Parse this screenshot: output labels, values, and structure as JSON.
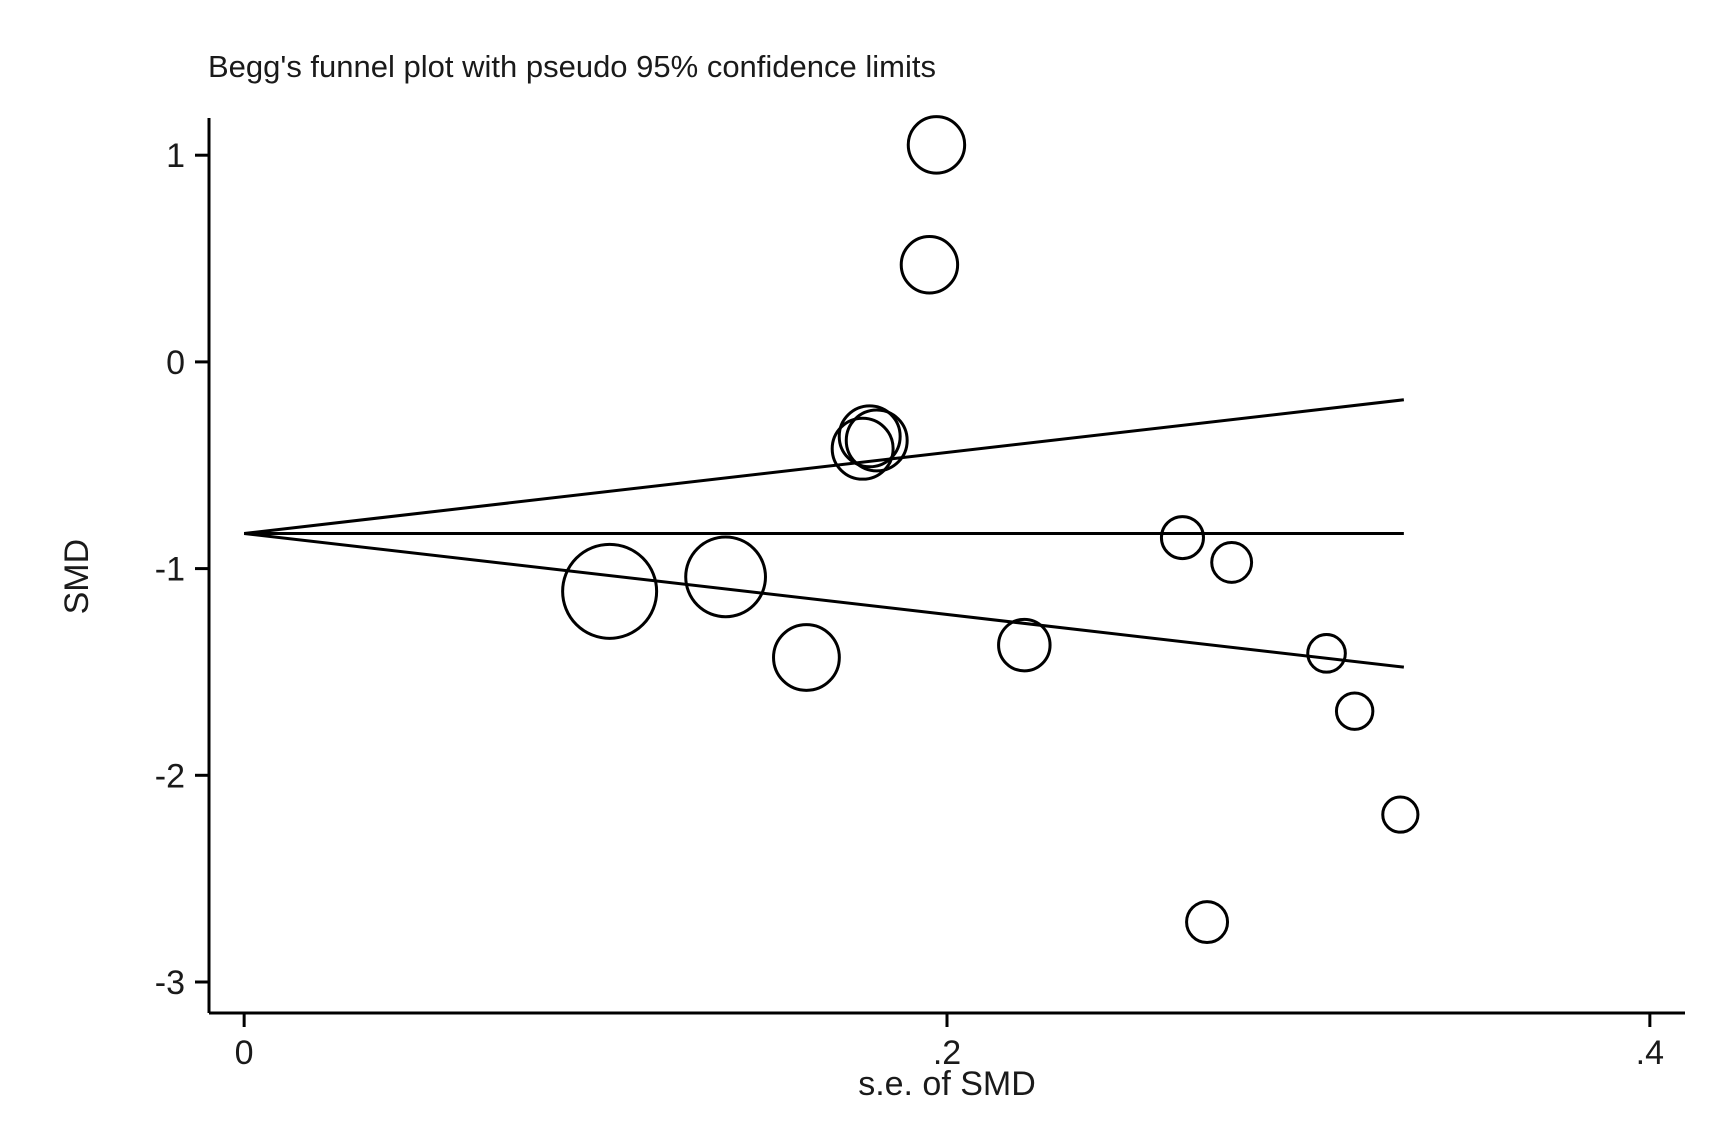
{
  "chart_data": {
    "type": "scatter",
    "title": "Begg's funnel plot with pseudo 95% confidence limits",
    "xlabel": "s.e. of SMD",
    "ylabel": "SMD",
    "xlim": [
      -0.01,
      0.41
    ],
    "ylim": [
      -3.15,
      1.18
    ],
    "xticks": [
      {
        "value": 0,
        "label": "0"
      },
      {
        "value": 0.2,
        "label": ".2"
      },
      {
        "value": 0.4,
        "label": ".4"
      }
    ],
    "yticks": [
      {
        "value": 1,
        "label": "1"
      },
      {
        "value": 0,
        "label": "0"
      },
      {
        "value": -1,
        "label": "-1"
      },
      {
        "value": -2,
        "label": "-2"
      },
      {
        "value": -3,
        "label": "-3"
      }
    ],
    "grid": false,
    "legend": "none",
    "pooled_estimate": -0.83,
    "confidence_limits": {
      "level": 0.95,
      "se_max": 0.33
    },
    "points": [
      {
        "se": 0.197,
        "smd": 1.05,
        "weight": 0.36
      },
      {
        "se": 0.195,
        "smd": 0.47,
        "weight": 0.36
      },
      {
        "se": 0.178,
        "smd": -0.36,
        "weight": 0.42
      },
      {
        "se": 0.18,
        "smd": -0.38,
        "weight": 0.42
      },
      {
        "se": 0.176,
        "smd": -0.42,
        "weight": 0.42
      },
      {
        "se": 0.104,
        "smd": -1.11,
        "weight": 1.0
      },
      {
        "se": 0.137,
        "smd": -1.04,
        "weight": 0.72
      },
      {
        "se": 0.16,
        "smd": -1.43,
        "weight": 0.49
      },
      {
        "se": 0.222,
        "smd": -1.37,
        "weight": 0.3
      },
      {
        "se": 0.267,
        "smd": -0.85,
        "weight": 0.2
      },
      {
        "se": 0.281,
        "smd": -0.97,
        "weight": 0.18
      },
      {
        "se": 0.308,
        "smd": -1.41,
        "weight": 0.16
      },
      {
        "se": 0.316,
        "smd": -1.69,
        "weight": 0.15
      },
      {
        "se": 0.329,
        "smd": -2.19,
        "weight": 0.14
      },
      {
        "se": 0.274,
        "smd": -2.71,
        "weight": 0.19
      }
    ]
  }
}
